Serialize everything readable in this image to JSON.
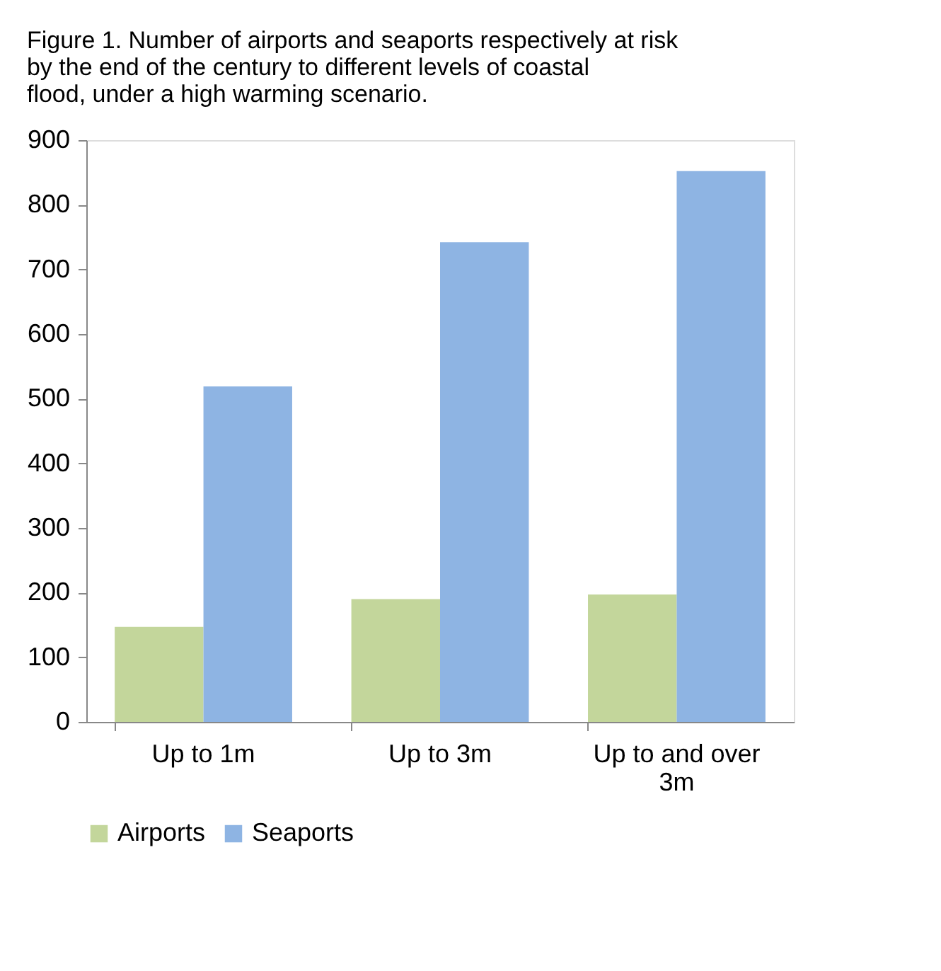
{
  "chart_data": {
    "type": "bar",
    "title": "Figure 1. Number of airports and seaports respectively at risk by the end of the century to different levels of coastal flood, under a high warming scenario.",
    "categories": [
      "Up to 1m",
      "Up to 3m",
      "Up to and over 3m"
    ],
    "series": [
      {
        "name": "Airports",
        "color": "#c3d69b",
        "values": [
          147,
          190,
          197
        ]
      },
      {
        "name": "Seaports",
        "color": "#8eb4e3",
        "values": [
          519,
          742,
          852
        ]
      }
    ],
    "ylim": [
      0,
      900
    ],
    "yticks": [
      0,
      100,
      200,
      300,
      400,
      500,
      600,
      700,
      800,
      900
    ],
    "grid": false,
    "legend": "bottom"
  }
}
